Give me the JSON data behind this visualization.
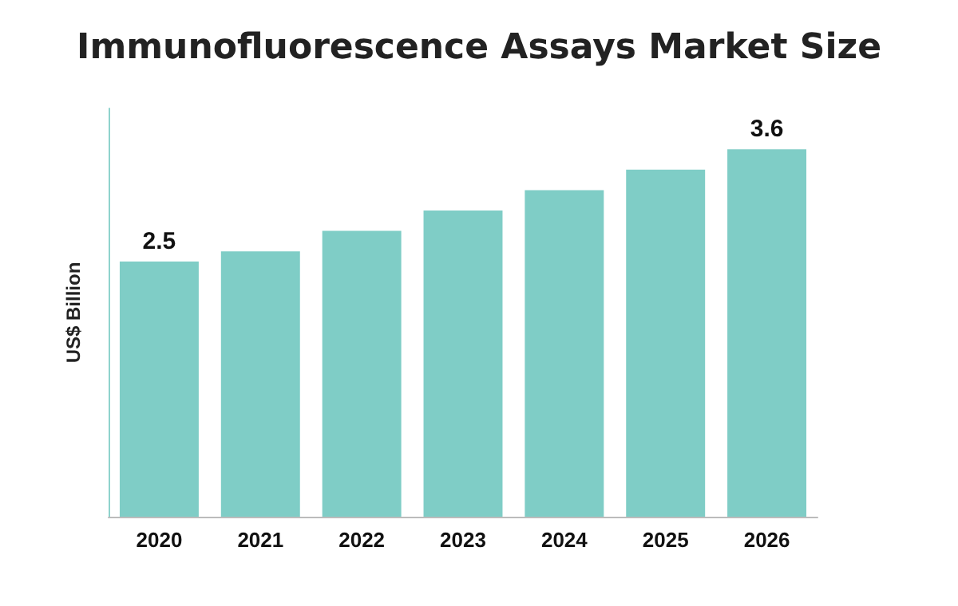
{
  "chart_data": {
    "type": "bar",
    "title": "Immunofluorescence Assays Market Size",
    "ylabel": "US$ Billion",
    "categories": [
      "2020",
      "2021",
      "2022",
      "2023",
      "2024",
      "2025",
      "2026"
    ],
    "values": [
      2.5,
      2.6,
      2.8,
      3.0,
      3.2,
      3.4,
      3.6
    ],
    "value_labels": [
      "2.5",
      null,
      null,
      null,
      null,
      null,
      "3.6"
    ],
    "color": "#7fcdc6",
    "grid": false
  }
}
